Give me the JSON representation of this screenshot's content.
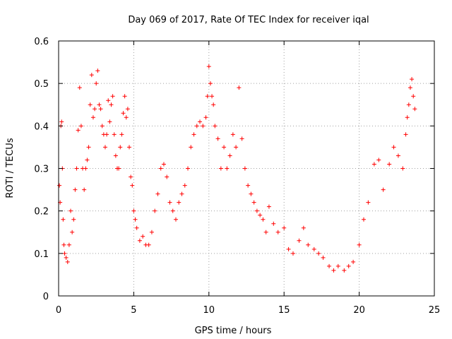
{
  "chart_data": {
    "type": "scatter",
    "title": "Day 069 of 2017, Rate Of TEC Index for receiver iqal",
    "xlabel": "GPS time / hours",
    "ylabel": "ROTI / TECUs",
    "xlim": [
      0,
      25
    ],
    "ylim": [
      0,
      0.6
    ],
    "x_ticks": [
      "0",
      "5",
      "10",
      "15",
      "20",
      "25"
    ],
    "y_ticks": [
      "0",
      "0.1",
      "0.2",
      "0.3",
      "0.4",
      "0.5",
      "0.6"
    ],
    "grid": true,
    "marker": "+",
    "color": "#ff0000",
    "series": [
      {
        "x": [
          0.05,
          0.1,
          0.15,
          0.2,
          0.25,
          0.3,
          0.35,
          0.4,
          0.5,
          0.6,
          0.7,
          0.8,
          0.9,
          1.0,
          1.1,
          1.2,
          1.3,
          1.4,
          1.5,
          1.6,
          1.7,
          1.8,
          1.9,
          2.0,
          2.1,
          2.2,
          2.3,
          2.4,
          2.5,
          2.6,
          2.7,
          2.8,
          2.9,
          3.0,
          3.1,
          3.2,
          3.3,
          3.4,
          3.5,
          3.6,
          3.7,
          3.8,
          3.9,
          4.0,
          4.1,
          4.2,
          4.3,
          4.4,
          4.5,
          4.6,
          4.7,
          4.8,
          4.9,
          5.0,
          5.1,
          5.2,
          5.4,
          5.6,
          5.8,
          6.0,
          6.2,
          6.4,
          6.6,
          6.8,
          7.0,
          7.2,
          7.4,
          7.6,
          7.8,
          8.0,
          8.2,
          8.4,
          8.6,
          8.8,
          9.0,
          9.2,
          9.4,
          9.6,
          9.8,
          9.9,
          10.0,
          10.1,
          10.2,
          10.3,
          10.4,
          10.6,
          10.8,
          11.0,
          11.2,
          11.4,
          11.6,
          11.8,
          12.0,
          12.2,
          12.4,
          12.6,
          12.8,
          13.0,
          13.2,
          13.4,
          13.6,
          13.8,
          14.0,
          14.3,
          14.6,
          15.0,
          15.3,
          15.6,
          16.0,
          16.3,
          16.6,
          17.0,
          17.3,
          17.6,
          18.0,
          18.3,
          18.6,
          19.0,
          19.3,
          19.6,
          20.0,
          20.3,
          20.6,
          21.0,
          21.3,
          21.6,
          22.0,
          22.3,
          22.6,
          22.9,
          23.1,
          23.2,
          23.3,
          23.4,
          23.5,
          23.6,
          23.7
        ],
        "y": [
          0.26,
          0.22,
          0.4,
          0.41,
          0.3,
          0.18,
          0.12,
          0.1,
          0.09,
          0.08,
          0.12,
          0.2,
          0.15,
          0.18,
          0.25,
          0.3,
          0.39,
          0.49,
          0.4,
          0.3,
          0.25,
          0.3,
          0.32,
          0.35,
          0.45,
          0.52,
          0.42,
          0.44,
          0.5,
          0.53,
          0.45,
          0.44,
          0.4,
          0.38,
          0.35,
          0.38,
          0.46,
          0.41,
          0.45,
          0.47,
          0.38,
          0.33,
          0.3,
          0.3,
          0.35,
          0.38,
          0.43,
          0.47,
          0.42,
          0.44,
          0.35,
          0.28,
          0.26,
          0.2,
          0.18,
          0.16,
          0.13,
          0.14,
          0.12,
          0.12,
          0.15,
          0.2,
          0.24,
          0.3,
          0.31,
          0.28,
          0.22,
          0.2,
          0.18,
          0.22,
          0.24,
          0.26,
          0.3,
          0.35,
          0.38,
          0.4,
          0.41,
          0.4,
          0.42,
          0.47,
          0.54,
          0.5,
          0.47,
          0.45,
          0.4,
          0.37,
          0.3,
          0.35,
          0.3,
          0.33,
          0.38,
          0.35,
          0.49,
          0.37,
          0.3,
          0.26,
          0.24,
          0.22,
          0.2,
          0.19,
          0.18,
          0.15,
          0.21,
          0.17,
          0.15,
          0.16,
          0.11,
          0.1,
          0.13,
          0.16,
          0.12,
          0.11,
          0.1,
          0.09,
          0.07,
          0.06,
          0.07,
          0.06,
          0.07,
          0.08,
          0.12,
          0.18,
          0.22,
          0.31,
          0.32,
          0.25,
          0.31,
          0.35,
          0.33,
          0.3,
          0.38,
          0.42,
          0.45,
          0.49,
          0.51,
          0.47,
          0.44
        ]
      }
    ]
  }
}
